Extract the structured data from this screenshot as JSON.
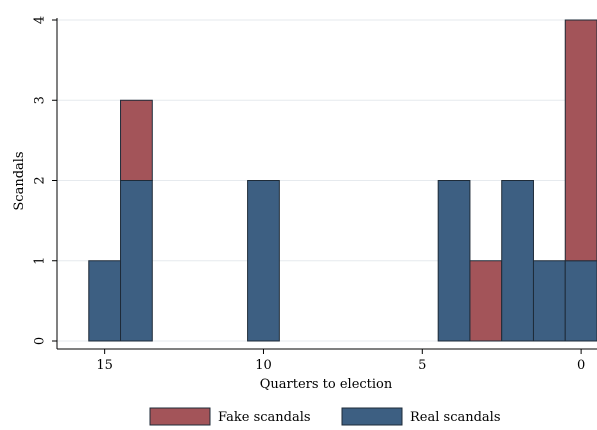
{
  "chart_data": {
    "type": "bar",
    "stacked": true,
    "x_reversed": true,
    "xlabel": "Quarters to election",
    "ylabel": "Scandals",
    "xlim": [
      16.5,
      -0.5
    ],
    "ylim": [
      0,
      4
    ],
    "x_ticks": [
      15,
      10,
      5,
      0
    ],
    "y_ticks": [
      0,
      1,
      2,
      3,
      4
    ],
    "grid": true,
    "legend_position": "bottom",
    "x": [
      15,
      14,
      10,
      4,
      3,
      2,
      1,
      0
    ],
    "series": [
      {
        "name": "Real scandals",
        "color": "#3d5f82",
        "values": [
          1,
          2,
          2,
          2,
          0,
          2,
          1,
          1
        ]
      },
      {
        "name": "Fake scandals",
        "color": "#a35459",
        "values": [
          0,
          1,
          0,
          0,
          1,
          0,
          0,
          3
        ]
      }
    ]
  }
}
